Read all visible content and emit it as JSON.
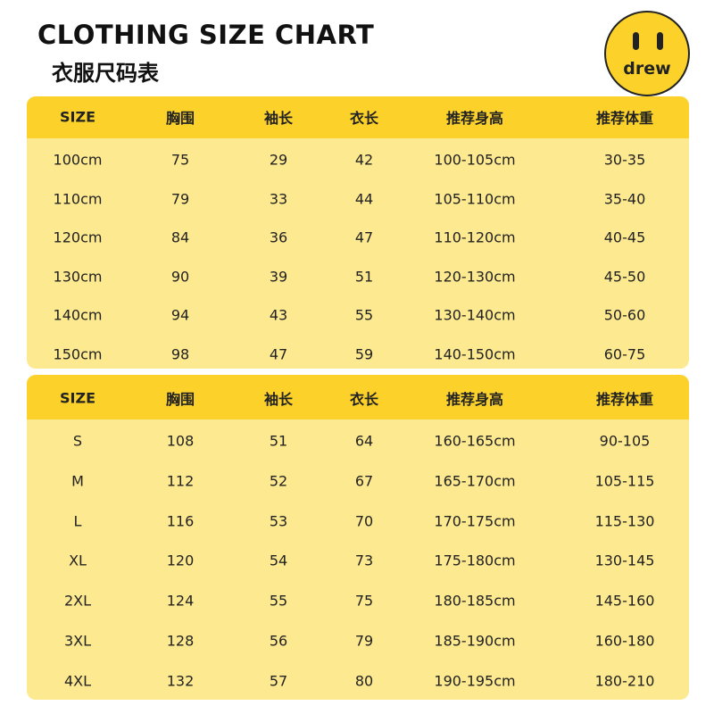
{
  "header": {
    "title": "CLOTHING SIZE CHART",
    "subtitle": "衣服尺码表",
    "logo": "drew"
  },
  "tables": [
    {
      "columns": [
        "SIZE",
        "胸围",
        "袖长",
        "衣长",
        "推荐身高",
        "推荐体重"
      ],
      "rows": [
        [
          "100cm",
          "75",
          "29",
          "42",
          "100-105cm",
          "30-35"
        ],
        [
          "110cm",
          "79",
          "33",
          "44",
          "105-110cm",
          "35-40"
        ],
        [
          "120cm",
          "84",
          "36",
          "47",
          "110-120cm",
          "40-45"
        ],
        [
          "130cm",
          "90",
          "39",
          "51",
          "120-130cm",
          "45-50"
        ],
        [
          "140cm",
          "94",
          "43",
          "55",
          "130-140cm",
          "50-60"
        ],
        [
          "150cm",
          "98",
          "47",
          "59",
          "140-150cm",
          "60-75"
        ]
      ]
    },
    {
      "columns": [
        "SIZE",
        "胸围",
        "袖长",
        "衣长",
        "推荐身高",
        "推荐体重"
      ],
      "rows": [
        [
          "S",
          "108",
          "51",
          "64",
          "160-165cm",
          "90-105"
        ],
        [
          "M",
          "112",
          "52",
          "67",
          "165-170cm",
          "105-115"
        ],
        [
          "L",
          "116",
          "53",
          "70",
          "170-175cm",
          "115-130"
        ],
        [
          "XL",
          "120",
          "54",
          "73",
          "175-180cm",
          "130-145"
        ],
        [
          "2XL",
          "124",
          "55",
          "75",
          "180-185cm",
          "145-160"
        ],
        [
          "3XL",
          "128",
          "56",
          "79",
          "185-190cm",
          "160-180"
        ],
        [
          "4XL",
          "132",
          "57",
          "80",
          "190-195cm",
          "180-210"
        ]
      ]
    }
  ]
}
